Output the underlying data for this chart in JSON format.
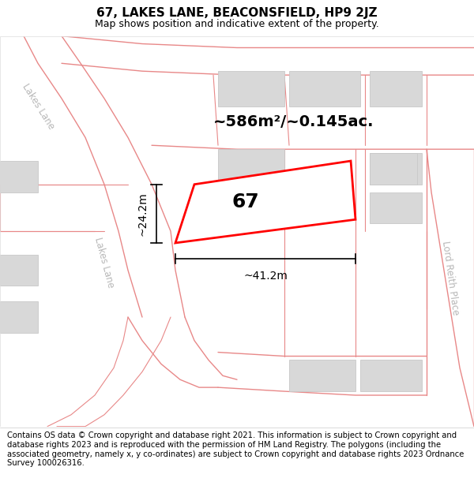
{
  "title": "67, LAKES LANE, BEACONSFIELD, HP9 2JZ",
  "subtitle": "Map shows position and indicative extent of the property.",
  "area_label": "~586m²/~0.145ac.",
  "property_number": "67",
  "dim_width": "~41.2m",
  "dim_height": "~24.2m",
  "footer": "Contains OS data © Crown copyright and database right 2021. This information is subject to Crown copyright and database rights 2023 and is reproduced with the permission of HM Land Registry. The polygons (including the associated geometry, namely x, y co-ordinates) are subject to Crown copyright and database rights 2023 Ordnance Survey 100026316.",
  "map_bg": "#ffffff",
  "road_line_color": "#e88888",
  "building_fill": "#d8d8d8",
  "building_outline": "#c8c8c8",
  "subject_fill": "#ffffff",
  "subject_outline": "#ff0000",
  "title_fontsize": 11,
  "subtitle_fontsize": 9,
  "area_fontsize": 14,
  "number_fontsize": 18,
  "dim_fontsize": 10,
  "footer_fontsize": 7.2,
  "street_label_color": "#b8b8b8",
  "street_label_fontsize": 8.5,
  "road_lw": 1.0,
  "subject_lw": 2.0
}
